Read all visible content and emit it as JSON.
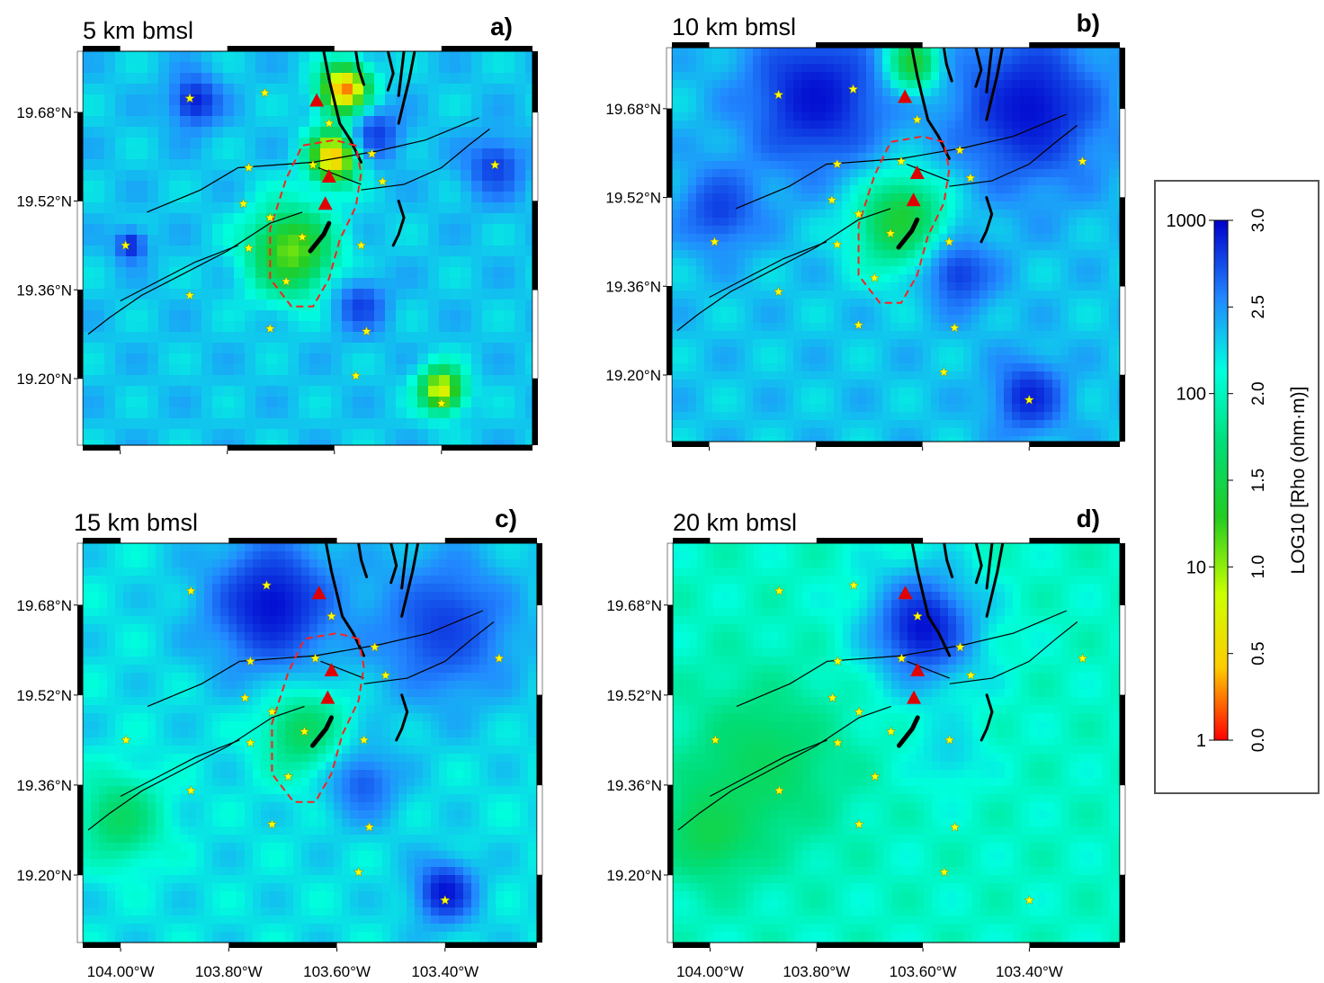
{
  "chart_data": {
    "type": "heatmap",
    "panels": [
      {
        "id": "a",
        "label": "a)",
        "depth": "5 km bmsl",
        "level": "high",
        "anomalies": [
          {
            "lon": -103.58,
            "lat": 19.72,
            "log_rho": 0.2,
            "r": 0.045
          },
          {
            "lon": -103.6,
            "lat": 19.6,
            "log_rho": 0.3,
            "r": 0.045
          },
          {
            "lon": -103.68,
            "lat": 19.43,
            "log_rho": 1.1,
            "r": 0.08
          },
          {
            "lon": -103.4,
            "lat": 19.18,
            "log_rho": 0.7,
            "r": 0.04
          },
          {
            "lon": -103.98,
            "lat": 19.44,
            "log_rho": 2.9,
            "r": 0.03
          },
          {
            "lon": -103.86,
            "lat": 19.7,
            "log_rho": 2.9,
            "r": 0.05
          },
          {
            "lon": -103.55,
            "lat": 19.33,
            "log_rho": 2.8,
            "r": 0.05
          },
          {
            "lon": -103.52,
            "lat": 19.64,
            "log_rho": 2.8,
            "r": 0.05
          },
          {
            "lon": -103.3,
            "lat": 19.58,
            "log_rho": 2.8,
            "r": 0.06
          }
        ]
      },
      {
        "id": "b",
        "label": "b)",
        "depth": "10 km bmsl",
        "level": "high",
        "anomalies": [
          {
            "lon": -103.64,
            "lat": 19.48,
            "log_rho": 1.3,
            "r": 0.09
          },
          {
            "lon": -103.62,
            "lat": 19.76,
            "log_rho": 0.9,
            "r": 0.05
          },
          {
            "lon": -103.8,
            "lat": 19.7,
            "log_rho": 2.95,
            "r": 0.14
          },
          {
            "lon": -103.4,
            "lat": 19.68,
            "log_rho": 2.95,
            "r": 0.15
          },
          {
            "lon": -103.53,
            "lat": 19.38,
            "log_rho": 2.8,
            "r": 0.07
          },
          {
            "lon": -103.4,
            "lat": 19.16,
            "log_rho": 2.9,
            "r": 0.07
          },
          {
            "lon": -103.98,
            "lat": 19.5,
            "log_rho": 2.8,
            "r": 0.08
          }
        ]
      },
      {
        "id": "c",
        "label": "c)",
        "depth": "15 km bmsl",
        "level": "mid",
        "anomalies": [
          {
            "lon": -103.66,
            "lat": 19.46,
            "log_rho": 1.5,
            "r": 0.08
          },
          {
            "lon": -103.72,
            "lat": 19.68,
            "log_rho": 2.95,
            "r": 0.13
          },
          {
            "lon": -103.4,
            "lat": 19.64,
            "log_rho": 2.8,
            "r": 0.14
          },
          {
            "lon": -103.55,
            "lat": 19.36,
            "log_rho": 2.7,
            "r": 0.07
          },
          {
            "lon": -103.4,
            "lat": 19.17,
            "log_rho": 2.95,
            "r": 0.06
          },
          {
            "lon": -104.0,
            "lat": 19.3,
            "log_rho": 1.6,
            "r": 0.08
          }
        ]
      },
      {
        "id": "d",
        "label": "d)",
        "depth": "20 km bmsl",
        "level": "low",
        "anomalies": [
          {
            "lon": -103.6,
            "lat": 19.64,
            "log_rho": 2.95,
            "r": 0.11
          },
          {
            "lon": -103.55,
            "lat": 19.42,
            "log_rho": 2.3,
            "r": 0.07
          },
          {
            "lon": -103.9,
            "lat": 19.4,
            "log_rho": 1.6,
            "r": 0.15
          },
          {
            "lon": -104.0,
            "lat": 19.28,
            "log_rho": 1.5,
            "r": 0.09
          }
        ]
      }
    ],
    "volcanoes": [
      {
        "lon": -103.617,
        "lat": 19.514
      },
      {
        "lon": -103.61,
        "lat": 19.563
      },
      {
        "lon": -103.633,
        "lat": 19.7
      }
    ],
    "stations": [
      {
        "lon": -103.87,
        "lat": 19.705
      },
      {
        "lon": -103.73,
        "lat": 19.715
      },
      {
        "lon": -103.61,
        "lat": 19.66
      },
      {
        "lon": -103.53,
        "lat": 19.605
      },
      {
        "lon": -103.76,
        "lat": 19.58
      },
      {
        "lon": -103.64,
        "lat": 19.585
      },
      {
        "lon": -103.51,
        "lat": 19.555
      },
      {
        "lon": -103.3,
        "lat": 19.585
      },
      {
        "lon": -103.77,
        "lat": 19.515
      },
      {
        "lon": -103.72,
        "lat": 19.49
      },
      {
        "lon": -103.66,
        "lat": 19.455
      },
      {
        "lon": -103.76,
        "lat": 19.435
      },
      {
        "lon": -103.55,
        "lat": 19.44
      },
      {
        "lon": -103.99,
        "lat": 19.44
      },
      {
        "lon": -103.69,
        "lat": 19.375
      },
      {
        "lon": -103.87,
        "lat": 19.35
      },
      {
        "lon": -103.72,
        "lat": 19.29
      },
      {
        "lon": -103.54,
        "lat": 19.285
      },
      {
        "lon": -103.56,
        "lat": 19.205
      },
      {
        "lon": -103.4,
        "lat": 19.155
      }
    ],
    "axes": {
      "xlim": [
        -104.07,
        -103.23
      ],
      "ylim": [
        19.08,
        19.79
      ],
      "xticks": [
        -104.0,
        -103.8,
        -103.6,
        -103.4
      ],
      "xtick_labels": [
        "104.00°W",
        "103.80°W",
        "103.60°W",
        "103.40°W"
      ],
      "yticks": [
        19.68,
        19.52,
        19.36,
        19.2
      ],
      "ytick_labels": [
        "19.68°N",
        "19.52°N",
        "19.36°N",
        "19.20°N"
      ]
    },
    "colorbar": {
      "title": "LOG10 [Rho (ohm·m)]",
      "range": [
        0.0,
        3.0
      ],
      "ticks": [
        "0.0",
        "0.5",
        "1.0",
        "1.5",
        "2.0",
        "2.5",
        "3.0"
      ],
      "rho_ticks": [
        {
          "log": 3,
          "label": "1000"
        },
        {
          "log": 2,
          "label": "100"
        },
        {
          "log": 1,
          "label": "10"
        },
        {
          "log": 0,
          "label": "1"
        }
      ],
      "colors": [
        "#ff0000",
        "#ffcc00",
        "#ccff00",
        "#22cc22",
        "#00dd77",
        "#00ffdd",
        "#2288ff",
        "#0000cc"
      ]
    },
    "colors": {
      "volcano": "#e00000",
      "station": "#ffff00",
      "outline": "#ff2020",
      "fault": "#000000"
    }
  }
}
